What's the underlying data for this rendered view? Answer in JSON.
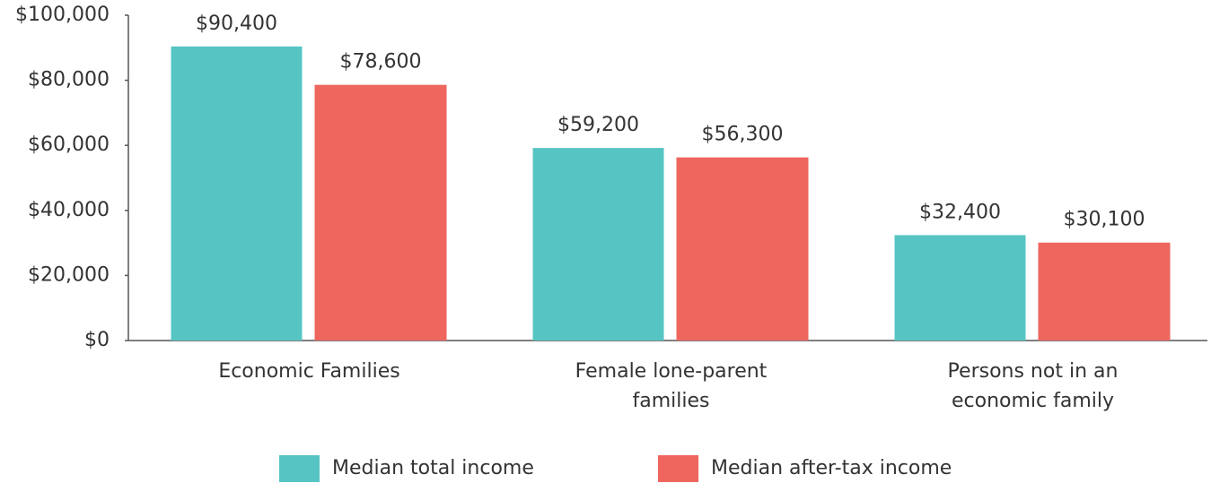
{
  "chart_data": {
    "type": "bar",
    "categories": [
      "Economic Families",
      "Female lone-parent families",
      "Persons not in an economic family"
    ],
    "series": [
      {
        "name": "Median total income",
        "color": "#57c4c4",
        "values": [
          90400,
          59200,
          32400
        ],
        "value_labels": [
          "$90,400",
          "$59,200",
          "$32,400"
        ]
      },
      {
        "name": "Median after-tax income",
        "color": "#ee665e",
        "values": [
          78600,
          56300,
          30100
        ],
        "value_labels": [
          "$78,600",
          "$56,300",
          "$30,100"
        ]
      }
    ],
    "ylim": [
      0,
      100000
    ],
    "yticks": [
      {
        "value": 0,
        "label": "$0"
      },
      {
        "value": 20000,
        "label": "$20,000"
      },
      {
        "value": 40000,
        "label": "$40,000"
      },
      {
        "value": 60000,
        "label": "$60,000"
      },
      {
        "value": 80000,
        "label": "$80,000"
      },
      {
        "value": 100000,
        "label": "$100,000"
      }
    ],
    "legend": "bottom"
  }
}
